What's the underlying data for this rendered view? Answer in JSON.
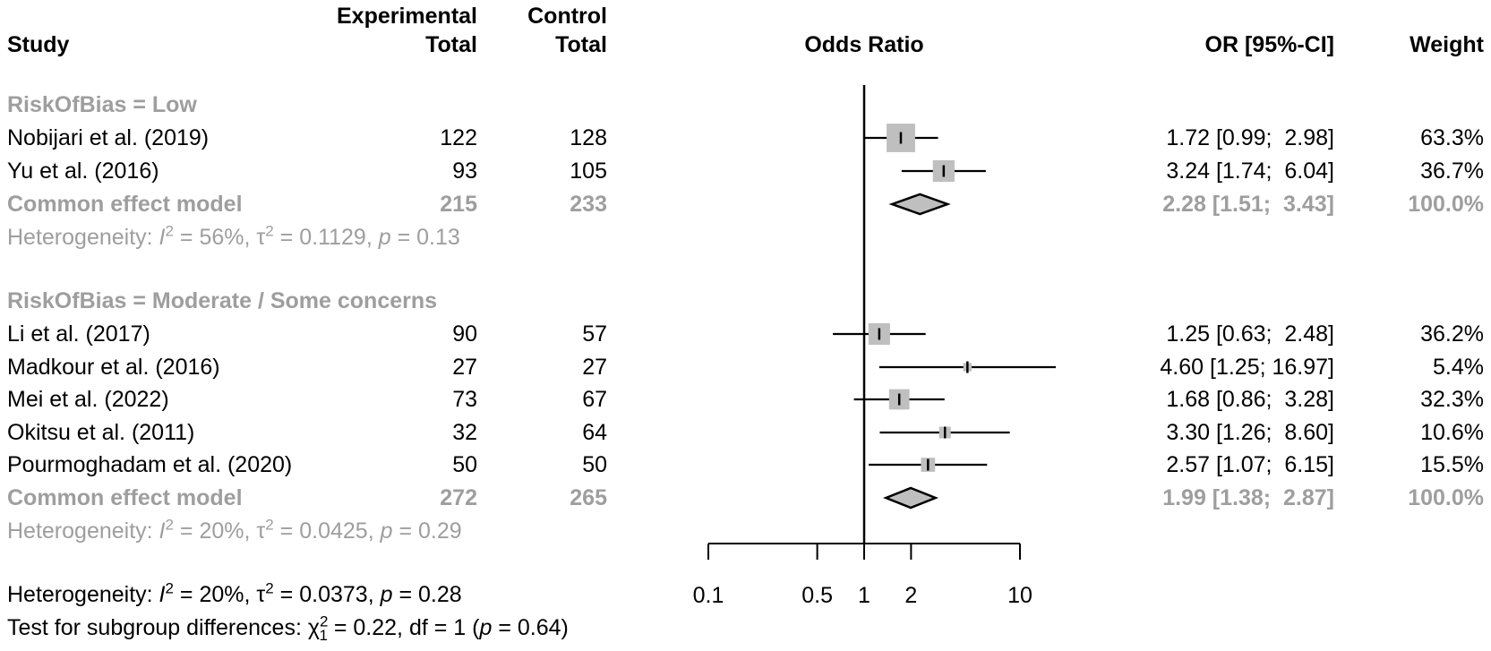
{
  "header": {
    "col_study": "Study",
    "col_experimental_line1": "Experimental",
    "col_control_line1": "Control",
    "col_total_exp": "Total",
    "col_total_ctrl": "Total",
    "col_odds_ratio": "Odds Ratio",
    "col_or_ci": "OR [95%-CI]",
    "col_weight": "Weight"
  },
  "colors": {
    "text_black": "#000000",
    "text_gray": "#9e9e9e",
    "square_fill": "#bfbfbf",
    "diamond_fill": "#bfbfbf",
    "diamond_border": "#000000",
    "line_black": "#000000"
  },
  "chart_data": {
    "type": "forest",
    "title": "",
    "effect_measure": "Odds Ratio",
    "x_axis": {
      "scale": "log10",
      "ticks": [
        0.1,
        0.5,
        1,
        2,
        10
      ],
      "tick_labels": [
        "0.1",
        "0.5",
        "1",
        "2",
        "10"
      ],
      "ref_line": 1,
      "axis_range_drawn": [
        0.1,
        10
      ]
    },
    "subgroups": [
      {
        "label": "RiskOfBias = Low",
        "studies": [
          {
            "name": "Nobijari et al. (2019)",
            "experimental_total": "122",
            "control_total": "128",
            "or": 1.72,
            "ci_lower": 0.99,
            "ci_upper": 2.98,
            "or_ci": "1.72 [0.99;  2.98]",
            "weight_pct": 63.3,
            "weight": "63.3%"
          },
          {
            "name": "Yu et al. (2016)",
            "experimental_total": "93",
            "control_total": "105",
            "or": 3.24,
            "ci_lower": 1.74,
            "ci_upper": 6.04,
            "or_ci": "3.24 [1.74;  6.04]",
            "weight_pct": 36.7,
            "weight": "36.7%"
          }
        ],
        "summary": {
          "name": "Common effect model",
          "experimental_total": "215",
          "control_total": "233",
          "or": 2.28,
          "ci_lower": 1.51,
          "ci_upper": 3.43,
          "or_ci": "2.28 [1.51;  3.43]",
          "weight": "100.0%"
        },
        "heterogeneity": {
          "prefix": "Heterogeneity: ",
          "i2": "56%",
          "tau2": "0.1129",
          "p": "0.13",
          "display_text": "Heterogeneity: I² = 56%, τ² = 0.1129, p = 0.13"
        }
      },
      {
        "label": "RiskOfBias = Moderate / Some concerns",
        "studies": [
          {
            "name": "Li et al. (2017)",
            "experimental_total": "90",
            "control_total": "57",
            "or": 1.25,
            "ci_lower": 0.63,
            "ci_upper": 2.48,
            "or_ci": "1.25 [0.63;  2.48]",
            "weight_pct": 36.2,
            "weight": "36.2%"
          },
          {
            "name": "Madkour et al. (2016)",
            "experimental_total": "27",
            "control_total": "27",
            "or": 4.6,
            "ci_lower": 1.25,
            "ci_upper": 16.97,
            "or_ci": "4.60 [1.25; 16.97]",
            "weight_pct": 5.4,
            "weight": "5.4%"
          },
          {
            "name": "Mei et al. (2022)",
            "experimental_total": "73",
            "control_total": "67",
            "or": 1.68,
            "ci_lower": 0.86,
            "ci_upper": 3.28,
            "or_ci": "1.68 [0.86;  3.28]",
            "weight_pct": 32.3,
            "weight": "32.3%"
          },
          {
            "name": "Okitsu et al. (2011)",
            "experimental_total": "32",
            "control_total": "64",
            "or": 3.3,
            "ci_lower": 1.26,
            "ci_upper": 8.6,
            "or_ci": "3.30 [1.26;  8.60]",
            "weight_pct": 10.6,
            "weight": "10.6%"
          },
          {
            "name": "Pourmoghadam et al. (2020)",
            "experimental_total": "50",
            "control_total": "50",
            "or": 2.57,
            "ci_lower": 1.07,
            "ci_upper": 6.15,
            "or_ci": "2.57 [1.07;  6.15]",
            "weight_pct": 15.5,
            "weight": "15.5%"
          }
        ],
        "summary": {
          "name": "Common effect model",
          "experimental_total": "272",
          "control_total": "265",
          "or": 1.99,
          "ci_lower": 1.38,
          "ci_upper": 2.87,
          "or_ci": "1.99 [1.38;  2.87]",
          "weight": "100.0%"
        },
        "heterogeneity": {
          "prefix": "Heterogeneity: ",
          "i2": "20%",
          "tau2": "0.0425",
          "p": "0.29",
          "display_text": "Heterogeneity: I² = 20%, τ² = 0.0425, p = 0.29"
        }
      }
    ],
    "overall_heterogeneity": {
      "prefix": "Heterogeneity: ",
      "i2": "20%",
      "tau2": "0.0373",
      "p": "0.28",
      "display_text": "Heterogeneity: I² = 20%, τ² = 0.0373, p = 0.28"
    },
    "subgroup_test": {
      "prefix": "Test for subgroup differences: ",
      "chi_sup": "2",
      "chi_sub": "1",
      "value": "0.22",
      "df": "1",
      "p": "0.64",
      "display_text": "Test for subgroup differences: χ²₁ = 0.22, df = 1 (p = 0.64)"
    }
  }
}
